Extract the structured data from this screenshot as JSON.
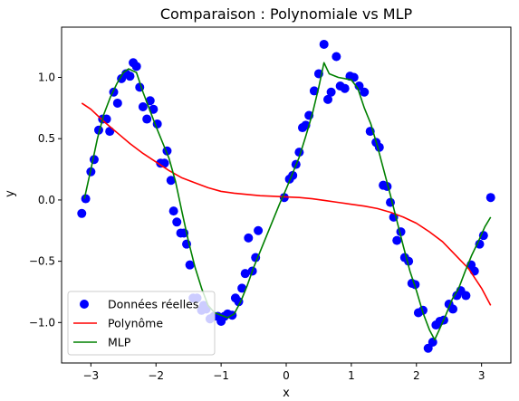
{
  "chart_data": {
    "type": "scatter",
    "title": "Comparaison : Polynomiale vs MLP",
    "xlabel": "x",
    "ylabel": "y",
    "xlim": [
      -3.45,
      3.45
    ],
    "ylim": [
      -1.33,
      1.41
    ],
    "xticks": [
      -3,
      -2,
      -1,
      0,
      1,
      2,
      3
    ],
    "xtick_labels": [
      "−3",
      "−2",
      "−1",
      "0",
      "1",
      "2",
      "3"
    ],
    "yticks": [
      -1.0,
      -0.5,
      0.0,
      0.5,
      1.0
    ],
    "ytick_labels": [
      "−1.0",
      "−0.5",
      "0.0",
      "0.5",
      "1.0"
    ],
    "grid": false,
    "legend_position": "lower-left",
    "series": [
      {
        "name": "Données réelles",
        "kind": "scatter",
        "color": "#0000ff",
        "points": [
          [
            -3.14,
            -0.11
          ],
          [
            -3.08,
            0.01
          ],
          [
            -3.0,
            0.23
          ],
          [
            -2.95,
            0.33
          ],
          [
            -2.88,
            0.57
          ],
          [
            -2.82,
            0.66
          ],
          [
            -2.76,
            0.66
          ],
          [
            -2.71,
            0.56
          ],
          [
            -2.65,
            0.88
          ],
          [
            -2.59,
            0.79
          ],
          [
            -2.53,
            0.99
          ],
          [
            -2.46,
            1.03
          ],
          [
            -2.4,
            1.01
          ],
          [
            -2.35,
            1.12
          ],
          [
            -2.3,
            1.09
          ],
          [
            -2.25,
            0.92
          ],
          [
            -2.2,
            0.76
          ],
          [
            -2.14,
            0.66
          ],
          [
            -2.09,
            0.81
          ],
          [
            -2.04,
            0.74
          ],
          [
            -1.98,
            0.62
          ],
          [
            -1.93,
            0.3
          ],
          [
            -1.87,
            0.3
          ],
          [
            -1.83,
            0.4
          ],
          [
            -1.77,
            0.16
          ],
          [
            -1.73,
            -0.09
          ],
          [
            -1.68,
            -0.18
          ],
          [
            -1.62,
            -0.27
          ],
          [
            -1.57,
            -0.27
          ],
          [
            -1.53,
            -0.36
          ],
          [
            -1.48,
            -0.53
          ],
          [
            -1.43,
            -0.8
          ],
          [
            -1.37,
            -0.8
          ],
          [
            -1.3,
            -0.9
          ],
          [
            -1.27,
            -0.86
          ],
          [
            -1.23,
            -0.89
          ],
          [
            -1.17,
            -0.97
          ],
          [
            -1.11,
            -0.95
          ],
          [
            -1.05,
            -0.95
          ],
          [
            -1.0,
            -0.99
          ],
          [
            -0.95,
            -0.95
          ],
          [
            -0.9,
            -0.93
          ],
          [
            -0.83,
            -0.94
          ],
          [
            -0.78,
            -0.8
          ],
          [
            -0.73,
            -0.83
          ],
          [
            -0.68,
            -0.72
          ],
          [
            -0.63,
            -0.6
          ],
          [
            -0.58,
            -0.31
          ],
          [
            -0.52,
            -0.58
          ],
          [
            -0.47,
            -0.47
          ],
          [
            -0.43,
            -0.25
          ],
          [
            -0.03,
            0.02
          ],
          [
            0.05,
            0.17
          ],
          [
            0.1,
            0.2
          ],
          [
            0.15,
            0.29
          ],
          [
            0.2,
            0.39
          ],
          [
            0.25,
            0.59
          ],
          [
            0.3,
            0.61
          ],
          [
            0.35,
            0.69
          ],
          [
            0.43,
            0.89
          ],
          [
            0.5,
            1.03
          ],
          [
            0.58,
            1.27
          ],
          [
            0.64,
            0.82
          ],
          [
            0.69,
            0.88
          ],
          [
            0.77,
            1.17
          ],
          [
            0.83,
            0.93
          ],
          [
            0.9,
            0.91
          ],
          [
            0.98,
            1.01
          ],
          [
            1.04,
            1.0
          ],
          [
            1.12,
            0.93
          ],
          [
            1.2,
            0.88
          ],
          [
            1.29,
            0.56
          ],
          [
            1.38,
            0.47
          ],
          [
            1.43,
            0.43
          ],
          [
            1.49,
            0.12
          ],
          [
            1.55,
            0.11
          ],
          [
            1.6,
            -0.02
          ],
          [
            1.65,
            -0.14
          ],
          [
            1.7,
            -0.33
          ],
          [
            1.76,
            -0.26
          ],
          [
            1.82,
            -0.47
          ],
          [
            1.88,
            -0.5
          ],
          [
            1.93,
            -0.68
          ],
          [
            1.98,
            -0.69
          ],
          [
            2.03,
            -0.92
          ],
          [
            2.1,
            -0.9
          ],
          [
            2.18,
            -1.21
          ],
          [
            2.25,
            -1.16
          ],
          [
            2.3,
            -1.02
          ],
          [
            2.36,
            -0.99
          ],
          [
            2.42,
            -0.98
          ],
          [
            2.5,
            -0.85
          ],
          [
            2.56,
            -0.89
          ],
          [
            2.62,
            -0.78
          ],
          [
            2.68,
            -0.74
          ],
          [
            2.76,
            -0.78
          ],
          [
            2.84,
            -0.53
          ],
          [
            2.89,
            -0.58
          ],
          [
            2.97,
            -0.36
          ],
          [
            3.03,
            -0.29
          ],
          [
            3.14,
            0.02
          ]
        ]
      },
      {
        "name": "Polynôme",
        "kind": "line",
        "color": "#ff0000",
        "points": [
          [
            -3.14,
            0.79
          ],
          [
            -3.0,
            0.74
          ],
          [
            -2.8,
            0.64
          ],
          [
            -2.6,
            0.55
          ],
          [
            -2.4,
            0.46
          ],
          [
            -2.2,
            0.38
          ],
          [
            -2.0,
            0.31
          ],
          [
            -1.8,
            0.24
          ],
          [
            -1.6,
            0.18
          ],
          [
            -1.4,
            0.14
          ],
          [
            -1.2,
            0.1
          ],
          [
            -1.0,
            0.07
          ],
          [
            -0.8,
            0.055
          ],
          [
            -0.6,
            0.045
          ],
          [
            -0.4,
            0.035
          ],
          [
            -0.2,
            0.03
          ],
          [
            0.0,
            0.025
          ],
          [
            0.2,
            0.02
          ],
          [
            0.4,
            0.01
          ],
          [
            0.6,
            -0.005
          ],
          [
            0.8,
            -0.02
          ],
          [
            1.0,
            -0.035
          ],
          [
            1.2,
            -0.05
          ],
          [
            1.4,
            -0.07
          ],
          [
            1.6,
            -0.1
          ],
          [
            1.8,
            -0.14
          ],
          [
            2.0,
            -0.19
          ],
          [
            2.2,
            -0.26
          ],
          [
            2.4,
            -0.34
          ],
          [
            2.6,
            -0.45
          ],
          [
            2.8,
            -0.56
          ],
          [
            3.0,
            -0.72
          ],
          [
            3.14,
            -0.86
          ]
        ]
      },
      {
        "name": "MLP",
        "kind": "line",
        "color": "#008000",
        "points": [
          [
            -3.1,
            0.01
          ],
          [
            -3.0,
            0.25
          ],
          [
            -2.9,
            0.5
          ],
          [
            -2.8,
            0.7
          ],
          [
            -2.7,
            0.84
          ],
          [
            -2.6,
            0.95
          ],
          [
            -2.5,
            1.04
          ],
          [
            -2.42,
            1.07
          ],
          [
            -2.3,
            1.04
          ],
          [
            -2.2,
            0.88
          ],
          [
            -2.0,
            0.6
          ],
          [
            -1.8,
            0.34
          ],
          [
            -1.7,
            0.15
          ],
          [
            -1.6,
            -0.1
          ],
          [
            -1.5,
            -0.34
          ],
          [
            -1.4,
            -0.55
          ],
          [
            -1.3,
            -0.72
          ],
          [
            -1.2,
            -0.86
          ],
          [
            -1.1,
            -0.92
          ],
          [
            -1.0,
            -0.94
          ],
          [
            -0.9,
            -0.96
          ],
          [
            -0.8,
            -0.93
          ],
          [
            -0.7,
            -0.83
          ],
          [
            -0.6,
            -0.7
          ],
          [
            -0.5,
            -0.55
          ],
          [
            -0.4,
            -0.42
          ],
          [
            -0.3,
            -0.29
          ],
          [
            -0.2,
            -0.16
          ],
          [
            -0.1,
            -0.03
          ],
          [
            0.0,
            0.09
          ],
          [
            0.1,
            0.22
          ],
          [
            0.2,
            0.35
          ],
          [
            0.3,
            0.52
          ],
          [
            0.4,
            0.7
          ],
          [
            0.5,
            0.92
          ],
          [
            0.58,
            1.12
          ],
          [
            0.66,
            1.03
          ],
          [
            0.8,
            1.0
          ],
          [
            1.0,
            0.98
          ],
          [
            1.1,
            0.91
          ],
          [
            1.2,
            0.75
          ],
          [
            1.3,
            0.62
          ],
          [
            1.4,
            0.44
          ],
          [
            1.5,
            0.24
          ],
          [
            1.6,
            0.04
          ],
          [
            1.7,
            -0.17
          ],
          [
            1.8,
            -0.38
          ],
          [
            1.9,
            -0.58
          ],
          [
            2.0,
            -0.74
          ],
          [
            2.1,
            -0.92
          ],
          [
            2.2,
            -1.06
          ],
          [
            2.28,
            -1.14
          ],
          [
            2.35,
            -1.06
          ],
          [
            2.45,
            -0.94
          ],
          [
            2.55,
            -0.81
          ],
          [
            2.65,
            -0.72
          ],
          [
            2.75,
            -0.58
          ],
          [
            2.85,
            -0.45
          ],
          [
            2.95,
            -0.34
          ],
          [
            3.05,
            -0.22
          ],
          [
            3.14,
            -0.14
          ]
        ]
      }
    ]
  }
}
